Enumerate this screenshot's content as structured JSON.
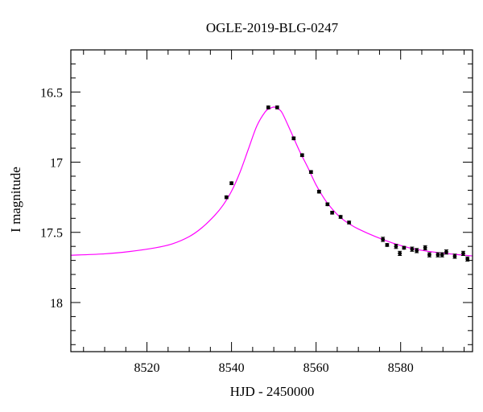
{
  "chart_data": {
    "type": "scatter",
    "title": "OGLE-2019-BLG-0247",
    "xlabel": "HJD - 2450000",
    "ylabel": "I magnitude",
    "xlim": [
      8502,
      8597
    ],
    "ylim": [
      18.35,
      16.2
    ],
    "y_inverted": true,
    "x_ticks": [
      8520,
      8540,
      8560,
      8580
    ],
    "x_tick_labels": [
      "8520",
      "8540",
      "8560",
      "8580"
    ],
    "y_ticks": [
      16.5,
      17,
      17.5,
      18
    ],
    "y_tick_labels": [
      "16.5",
      "17",
      "17.5",
      "18"
    ],
    "grid": false,
    "colors": {
      "points": "#000000",
      "model": "#ff00ff",
      "frame": "#000000"
    },
    "model": {
      "name": "",
      "x": [
        8502,
        8510,
        8516,
        8522,
        8526,
        8530,
        8533,
        8536,
        8538,
        8540,
        8542,
        8544,
        8546,
        8548,
        8549,
        8550,
        8551,
        8552,
        8554,
        8556,
        8558,
        8560,
        8562,
        8564,
        8566,
        8568,
        8570,
        8574,
        8578,
        8582,
        8586,
        8590,
        8594,
        8597
      ],
      "y": [
        17.663,
        17.653,
        17.636,
        17.61,
        17.582,
        17.53,
        17.467,
        17.38,
        17.306,
        17.207,
        17.072,
        16.906,
        16.741,
        16.64,
        16.619,
        16.607,
        16.62,
        16.65,
        16.78,
        16.915,
        17.035,
        17.162,
        17.263,
        17.34,
        17.4,
        17.442,
        17.476,
        17.53,
        17.575,
        17.61,
        17.633,
        17.648,
        17.66,
        17.668
      ]
    },
    "series": [
      {
        "name": "",
        "x": [
          8538.8,
          8540,
          8548.7,
          8550.8,
          8554.7,
          8556.7,
          8558.8,
          8560.7,
          8562.7,
          8563.8,
          8565.8,
          8567.8,
          8575.8,
          8576.8,
          8578.9,
          8579.8,
          8580.8,
          8582.7,
          8583.8,
          8585.8,
          8586.8,
          8588.8,
          8589.8,
          8590.8,
          8592.8,
          8594.8,
          8595.8
        ],
        "y": [
          17.25,
          17.15,
          16.61,
          16.61,
          16.83,
          16.95,
          17.07,
          17.21,
          17.3,
          17.36,
          17.39,
          17.43,
          17.55,
          17.59,
          17.6,
          17.65,
          17.61,
          17.62,
          17.63,
          17.61,
          17.66,
          17.66,
          17.66,
          17.64,
          17.67,
          17.65,
          17.69
        ],
        "yerr": [
          0.01,
          0.01,
          0.01,
          0.01,
          0.01,
          0.01,
          0.01,
          0.01,
          0.01,
          0.01,
          0.01,
          0.01,
          0.015,
          0.01,
          0.015,
          0.015,
          0.01,
          0.015,
          0.015,
          0.015,
          0.015,
          0.015,
          0.015,
          0.015,
          0.015,
          0.015,
          0.015
        ]
      }
    ]
  }
}
